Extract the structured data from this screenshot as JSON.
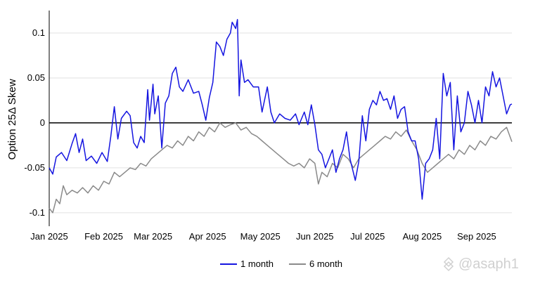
{
  "chart_data": {
    "type": "line",
    "ylabel": "Option 25Δ Skew",
    "xlabel": "",
    "ylim": [
      -0.115,
      0.125
    ],
    "yticks": [
      0.1,
      0.05,
      0,
      -0.05,
      -0.1
    ],
    "ytick_labels": [
      "0.1",
      "0.05",
      "0",
      "-0.05",
      "-0.1"
    ],
    "xticks": [
      "Jan 2025",
      "Feb 2025",
      "Mar 2025",
      "Apr 2025",
      "May 2025",
      "Jun 2025",
      "Jul 2025",
      "Aug 2025",
      "Sep 2025"
    ],
    "x_start_date": "2025-01-01",
    "x_end_date": "2025-09-21",
    "grid": "horizontal",
    "zero_line": true,
    "legend_position": "bottom-center",
    "series": [
      {
        "name": "1 month",
        "color": "#1515e0",
        "points": [
          [
            "2025-01-01",
            -0.05
          ],
          [
            "2025-01-03",
            -0.057
          ],
          [
            "2025-01-05",
            -0.038
          ],
          [
            "2025-01-08",
            -0.033
          ],
          [
            "2025-01-11",
            -0.042
          ],
          [
            "2025-01-14",
            -0.023
          ],
          [
            "2025-01-16",
            -0.012
          ],
          [
            "2025-01-18",
            -0.033
          ],
          [
            "2025-01-20",
            -0.018
          ],
          [
            "2025-01-22",
            -0.042
          ],
          [
            "2025-01-25",
            -0.037
          ],
          [
            "2025-01-28",
            -0.045
          ],
          [
            "2025-01-31",
            -0.033
          ],
          [
            "2025-02-03",
            -0.043
          ],
          [
            "2025-02-05",
            -0.015
          ],
          [
            "2025-02-07",
            0.018
          ],
          [
            "2025-02-09",
            -0.018
          ],
          [
            "2025-02-11",
            0.005
          ],
          [
            "2025-02-14",
            0.013
          ],
          [
            "2025-02-16",
            0.008
          ],
          [
            "2025-02-18",
            -0.022
          ],
          [
            "2025-02-20",
            -0.028
          ],
          [
            "2025-02-22",
            -0.015
          ],
          [
            "2025-02-24",
            -0.022
          ],
          [
            "2025-02-26",
            0.037
          ],
          [
            "2025-02-27",
            0.003
          ],
          [
            "2025-03-01",
            0.043
          ],
          [
            "2025-03-02",
            0.01
          ],
          [
            "2025-03-04",
            0.03
          ],
          [
            "2025-03-06",
            -0.028
          ],
          [
            "2025-03-08",
            0.022
          ],
          [
            "2025-03-10",
            0.03
          ],
          [
            "2025-03-12",
            0.055
          ],
          [
            "2025-03-14",
            0.062
          ],
          [
            "2025-03-16",
            0.04
          ],
          [
            "2025-03-18",
            0.035
          ],
          [
            "2025-03-21",
            0.048
          ],
          [
            "2025-03-24",
            0.033
          ],
          [
            "2025-03-27",
            0.035
          ],
          [
            "2025-03-29",
            0.02
          ],
          [
            "2025-03-31",
            0.003
          ],
          [
            "2025-04-02",
            0.028
          ],
          [
            "2025-04-04",
            0.045
          ],
          [
            "2025-04-06",
            0.09
          ],
          [
            "2025-04-08",
            0.085
          ],
          [
            "2025-04-10",
            0.075
          ],
          [
            "2025-04-12",
            0.093
          ],
          [
            "2025-04-14",
            0.1
          ],
          [
            "2025-04-15",
            0.112
          ],
          [
            "2025-04-17",
            0.105
          ],
          [
            "2025-04-18",
            0.115
          ],
          [
            "2025-04-19",
            0.03
          ],
          [
            "2025-04-20",
            0.07
          ],
          [
            "2025-04-22",
            0.045
          ],
          [
            "2025-04-24",
            0.048
          ],
          [
            "2025-04-27",
            0.04
          ],
          [
            "2025-04-30",
            0.04
          ],
          [
            "2025-05-02",
            0.012
          ],
          [
            "2025-05-05",
            0.04
          ],
          [
            "2025-05-07",
            0.012
          ],
          [
            "2025-05-09",
            0.0
          ],
          [
            "2025-05-12",
            0.01
          ],
          [
            "2025-05-15",
            0.005
          ],
          [
            "2025-05-18",
            0.003
          ],
          [
            "2025-05-21",
            0.01
          ],
          [
            "2025-05-23",
            -0.002
          ],
          [
            "2025-05-26",
            0.012
          ],
          [
            "2025-05-28",
            -0.002
          ],
          [
            "2025-05-30",
            0.02
          ],
          [
            "2025-06-01",
            -0.002
          ],
          [
            "2025-06-03",
            -0.03
          ],
          [
            "2025-06-05",
            -0.035
          ],
          [
            "2025-06-07",
            -0.05
          ],
          [
            "2025-06-09",
            -0.04
          ],
          [
            "2025-06-11",
            -0.03
          ],
          [
            "2025-06-13",
            -0.055
          ],
          [
            "2025-06-15",
            -0.04
          ],
          [
            "2025-06-17",
            -0.03
          ],
          [
            "2025-06-19",
            -0.01
          ],
          [
            "2025-06-21",
            -0.04
          ],
          [
            "2025-06-24",
            -0.064
          ],
          [
            "2025-06-26",
            -0.043
          ],
          [
            "2025-06-28",
            0.008
          ],
          [
            "2025-06-30",
            -0.02
          ],
          [
            "2025-07-02",
            0.015
          ],
          [
            "2025-07-04",
            0.025
          ],
          [
            "2025-07-06",
            0.02
          ],
          [
            "2025-07-08",
            0.035
          ],
          [
            "2025-07-10",
            0.025
          ],
          [
            "2025-07-12",
            0.027
          ],
          [
            "2025-07-14",
            0.015
          ],
          [
            "2025-07-16",
            0.03
          ],
          [
            "2025-07-18",
            0.005
          ],
          [
            "2025-07-20",
            0.015
          ],
          [
            "2025-07-22",
            0.018
          ],
          [
            "2025-07-24",
            -0.01
          ],
          [
            "2025-07-26",
            -0.02
          ],
          [
            "2025-07-28",
            -0.02
          ],
          [
            "2025-07-30",
            -0.04
          ],
          [
            "2025-08-01",
            -0.085
          ],
          [
            "2025-08-03",
            -0.045
          ],
          [
            "2025-08-05",
            -0.04
          ],
          [
            "2025-08-07",
            -0.03
          ],
          [
            "2025-08-09",
            0.005
          ],
          [
            "2025-08-11",
            -0.04
          ],
          [
            "2025-08-13",
            0.055
          ],
          [
            "2025-08-15",
            0.03
          ],
          [
            "2025-08-17",
            0.045
          ],
          [
            "2025-08-19",
            -0.03
          ],
          [
            "2025-08-21",
            0.03
          ],
          [
            "2025-08-23",
            -0.01
          ],
          [
            "2025-08-25",
            0.0
          ],
          [
            "2025-08-27",
            0.035
          ],
          [
            "2025-08-29",
            0.02
          ],
          [
            "2025-08-31",
            0.0
          ],
          [
            "2025-09-02",
            0.025
          ],
          [
            "2025-09-04",
            0.0
          ],
          [
            "2025-09-06",
            0.04
          ],
          [
            "2025-09-08",
            0.03
          ],
          [
            "2025-09-10",
            0.057
          ],
          [
            "2025-09-12",
            0.04
          ],
          [
            "2025-09-14",
            0.05
          ],
          [
            "2025-09-16",
            0.03
          ],
          [
            "2025-09-18",
            0.01
          ],
          [
            "2025-09-20",
            0.02
          ],
          [
            "2025-09-21",
            0.021
          ]
        ]
      },
      {
        "name": "6 month",
        "color": "#8a8a8a",
        "points": [
          [
            "2025-01-01",
            -0.095
          ],
          [
            "2025-01-03",
            -0.1
          ],
          [
            "2025-01-05",
            -0.085
          ],
          [
            "2025-01-07",
            -0.09
          ],
          [
            "2025-01-09",
            -0.07
          ],
          [
            "2025-01-11",
            -0.08
          ],
          [
            "2025-01-14",
            -0.075
          ],
          [
            "2025-01-17",
            -0.078
          ],
          [
            "2025-01-20",
            -0.072
          ],
          [
            "2025-01-23",
            -0.078
          ],
          [
            "2025-01-26",
            -0.07
          ],
          [
            "2025-01-29",
            -0.075
          ],
          [
            "2025-02-01",
            -0.065
          ],
          [
            "2025-02-04",
            -0.068
          ],
          [
            "2025-02-07",
            -0.055
          ],
          [
            "2025-02-10",
            -0.06
          ],
          [
            "2025-02-13",
            -0.055
          ],
          [
            "2025-02-16",
            -0.05
          ],
          [
            "2025-02-19",
            -0.052
          ],
          [
            "2025-02-22",
            -0.045
          ],
          [
            "2025-02-25",
            -0.048
          ],
          [
            "2025-02-28",
            -0.04
          ],
          [
            "2025-03-03",
            -0.035
          ],
          [
            "2025-03-06",
            -0.03
          ],
          [
            "2025-03-09",
            -0.025
          ],
          [
            "2025-03-12",
            -0.028
          ],
          [
            "2025-03-15",
            -0.02
          ],
          [
            "2025-03-18",
            -0.025
          ],
          [
            "2025-03-21",
            -0.015
          ],
          [
            "2025-03-24",
            -0.02
          ],
          [
            "2025-03-27",
            -0.01
          ],
          [
            "2025-03-30",
            -0.015
          ],
          [
            "2025-04-02",
            -0.005
          ],
          [
            "2025-04-05",
            -0.01
          ],
          [
            "2025-04-08",
            0.0
          ],
          [
            "2025-04-11",
            -0.005
          ],
          [
            "2025-04-14",
            -0.002
          ],
          [
            "2025-04-17",
            0.0
          ],
          [
            "2025-04-20",
            -0.008
          ],
          [
            "2025-04-23",
            -0.005
          ],
          [
            "2025-04-26",
            -0.012
          ],
          [
            "2025-04-29",
            -0.015
          ],
          [
            "2025-05-02",
            -0.02
          ],
          [
            "2025-05-05",
            -0.025
          ],
          [
            "2025-05-08",
            -0.03
          ],
          [
            "2025-05-11",
            -0.035
          ],
          [
            "2025-05-14",
            -0.04
          ],
          [
            "2025-05-17",
            -0.045
          ],
          [
            "2025-05-20",
            -0.048
          ],
          [
            "2025-05-23",
            -0.045
          ],
          [
            "2025-05-26",
            -0.05
          ],
          [
            "2025-05-29",
            -0.04
          ],
          [
            "2025-06-01",
            -0.045
          ],
          [
            "2025-06-03",
            -0.068
          ],
          [
            "2025-06-05",
            -0.055
          ],
          [
            "2025-06-08",
            -0.06
          ],
          [
            "2025-06-11",
            -0.045
          ],
          [
            "2025-06-14",
            -0.05
          ],
          [
            "2025-06-17",
            -0.035
          ],
          [
            "2025-06-20",
            -0.04
          ],
          [
            "2025-06-23",
            -0.05
          ],
          [
            "2025-06-26",
            -0.04
          ],
          [
            "2025-06-29",
            -0.035
          ],
          [
            "2025-07-02",
            -0.03
          ],
          [
            "2025-07-05",
            -0.025
          ],
          [
            "2025-07-08",
            -0.02
          ],
          [
            "2025-07-11",
            -0.015
          ],
          [
            "2025-07-14",
            -0.018
          ],
          [
            "2025-07-17",
            -0.01
          ],
          [
            "2025-07-20",
            -0.015
          ],
          [
            "2025-07-23",
            -0.008
          ],
          [
            "2025-07-26",
            -0.02
          ],
          [
            "2025-07-29",
            -0.03
          ],
          [
            "2025-08-01",
            -0.045
          ],
          [
            "2025-08-04",
            -0.055
          ],
          [
            "2025-08-07",
            -0.05
          ],
          [
            "2025-08-10",
            -0.045
          ],
          [
            "2025-08-13",
            -0.04
          ],
          [
            "2025-08-16",
            -0.035
          ],
          [
            "2025-08-19",
            -0.04
          ],
          [
            "2025-08-22",
            -0.03
          ],
          [
            "2025-08-25",
            -0.035
          ],
          [
            "2025-08-28",
            -0.025
          ],
          [
            "2025-08-31",
            -0.03
          ],
          [
            "2025-09-03",
            -0.02
          ],
          [
            "2025-09-06",
            -0.025
          ],
          [
            "2025-09-09",
            -0.015
          ],
          [
            "2025-09-12",
            -0.018
          ],
          [
            "2025-09-15",
            -0.01
          ],
          [
            "2025-09-18",
            -0.005
          ],
          [
            "2025-09-21",
            -0.021
          ]
        ]
      }
    ]
  },
  "watermark": {
    "text": "@asaph1"
  }
}
